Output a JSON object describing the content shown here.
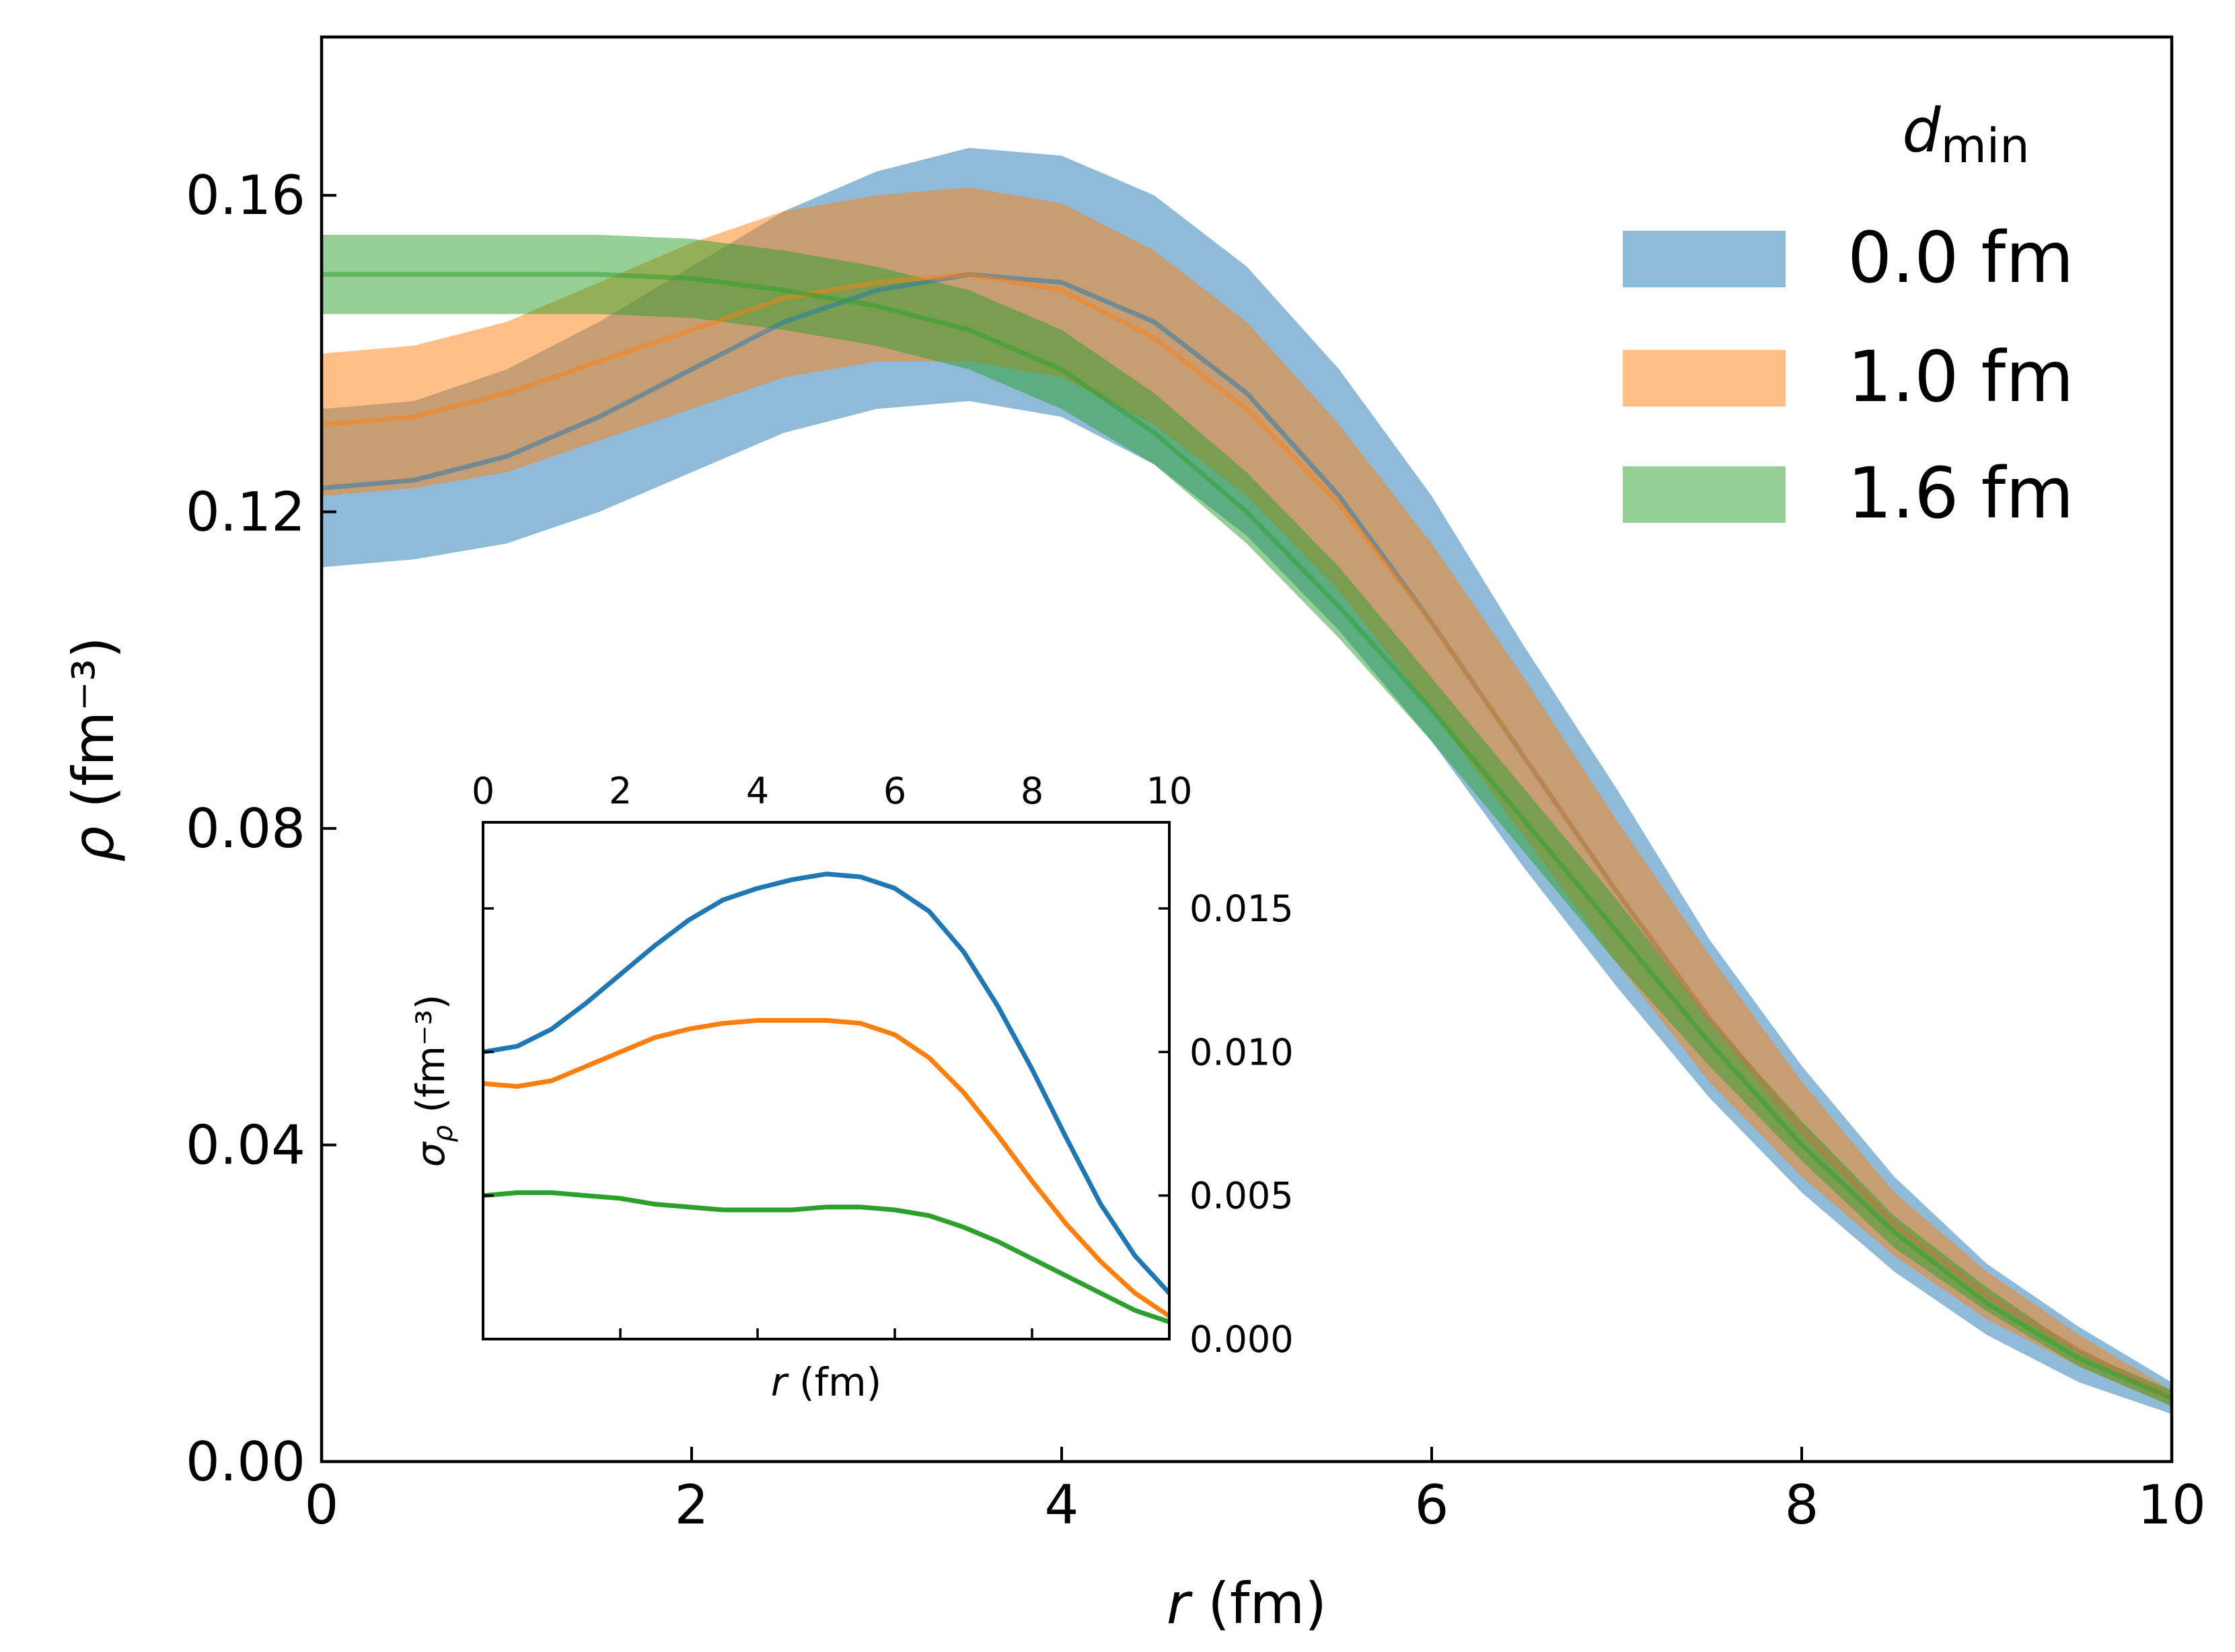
{
  "chart_data": [
    {
      "type": "area",
      "role": "main",
      "xlabel": "r (fm)",
      "ylabel": "ρ (fm⁻³)",
      "xlim": [
        0,
        10
      ],
      "ylim": [
        0,
        0.18
      ],
      "xticks": [
        0,
        2,
        4,
        6,
        8,
        10
      ],
      "xtick_labels": [
        "0",
        "2",
        "4",
        "6",
        "8",
        "10"
      ],
      "yticks": [
        0,
        0.04,
        0.08,
        0.12,
        0.16
      ],
      "ytick_labels": [
        "0.00",
        "0.04",
        "0.08",
        "0.12",
        "0.16"
      ],
      "legend": {
        "title": "d",
        "title_sub": "min",
        "placement": "top-right"
      },
      "x": [
        0,
        0.5,
        1,
        1.5,
        2,
        2.5,
        3,
        3.5,
        4,
        4.5,
        5,
        5.5,
        6,
        6.5,
        7,
        7.5,
        8,
        8.5,
        9,
        9.5,
        10
      ],
      "series": [
        {
          "name": "0.0 fm",
          "color": "#1f77b4",
          "mean": [
            0.123,
            0.124,
            0.127,
            0.132,
            0.138,
            0.144,
            0.148,
            0.15,
            0.149,
            0.144,
            0.135,
            0.122,
            0.106,
            0.089,
            0.072,
            0.056,
            0.042,
            0.03,
            0.021,
            0.014,
            0.008
          ],
          "lower": [
            0.113,
            0.114,
            0.116,
            0.12,
            0.125,
            0.13,
            0.133,
            0.134,
            0.132,
            0.126,
            0.117,
            0.105,
            0.091,
            0.075,
            0.06,
            0.046,
            0.034,
            0.024,
            0.016,
            0.01,
            0.006
          ],
          "upper": [
            0.133,
            0.134,
            0.138,
            0.144,
            0.151,
            0.158,
            0.163,
            0.166,
            0.165,
            0.16,
            0.151,
            0.138,
            0.122,
            0.103,
            0.085,
            0.066,
            0.05,
            0.036,
            0.025,
            0.017,
            0.01
          ]
        },
        {
          "name": "1.0 fm",
          "color": "#ff7f0e",
          "mean": [
            0.131,
            0.132,
            0.135,
            0.139,
            0.143,
            0.147,
            0.149,
            0.15,
            0.148,
            0.142,
            0.133,
            0.121,
            0.106,
            0.089,
            0.072,
            0.056,
            0.042,
            0.03,
            0.021,
            0.014,
            0.008
          ],
          "lower": [
            0.122,
            0.123,
            0.125,
            0.129,
            0.133,
            0.137,
            0.139,
            0.139,
            0.137,
            0.131,
            0.122,
            0.11,
            0.095,
            0.079,
            0.063,
            0.048,
            0.036,
            0.026,
            0.018,
            0.012,
            0.007
          ],
          "upper": [
            0.14,
            0.141,
            0.144,
            0.149,
            0.154,
            0.158,
            0.16,
            0.161,
            0.159,
            0.153,
            0.144,
            0.131,
            0.116,
            0.099,
            0.081,
            0.064,
            0.048,
            0.034,
            0.024,
            0.016,
            0.009
          ]
        },
        {
          "name": "1.6 fm",
          "color": "#2ca02c",
          "mean": [
            0.15,
            0.15,
            0.15,
            0.15,
            0.1495,
            0.148,
            0.146,
            0.143,
            0.138,
            0.13,
            0.12,
            0.108,
            0.095,
            0.081,
            0.067,
            0.053,
            0.04,
            0.029,
            0.02,
            0.013,
            0.008
          ],
          "lower": [
            0.145,
            0.145,
            0.145,
            0.145,
            0.1445,
            0.143,
            0.141,
            0.138,
            0.133,
            0.126,
            0.116,
            0.104,
            0.091,
            0.077,
            0.063,
            0.05,
            0.038,
            0.027,
            0.019,
            0.012,
            0.007
          ],
          "upper": [
            0.155,
            0.155,
            0.155,
            0.155,
            0.1545,
            0.153,
            0.151,
            0.148,
            0.143,
            0.135,
            0.125,
            0.113,
            0.099,
            0.085,
            0.071,
            0.056,
            0.043,
            0.031,
            0.022,
            0.014,
            0.009
          ]
        }
      ]
    },
    {
      "type": "line",
      "role": "inset",
      "xlabel": "r (fm)",
      "ylabel": "σρ (fm⁻³)",
      "xlim": [
        0,
        10
      ],
      "ylim": [
        0,
        0.018
      ],
      "xticks": [
        0,
        2,
        4,
        6,
        8,
        10
      ],
      "xtick_labels": [
        "0",
        "2",
        "4",
        "6",
        "8",
        "10"
      ],
      "xticks_top_labeled": true,
      "yticks": [
        0,
        0.005,
        0.01,
        0.015
      ],
      "ytick_labels": [
        "0.000",
        "0.005",
        "0.010",
        "0.015"
      ],
      "yticks_right_labeled": true,
      "x": [
        0,
        0.5,
        1,
        1.5,
        2,
        2.5,
        3,
        3.5,
        4,
        4.5,
        5,
        5.5,
        6,
        6.5,
        7,
        7.5,
        8,
        8.5,
        9,
        9.5,
        10
      ],
      "series": [
        {
          "name": "0.0 fm",
          "color": "#1f77b4",
          "values": [
            0.01,
            0.0102,
            0.0108,
            0.0117,
            0.0127,
            0.0137,
            0.0146,
            0.0153,
            0.0157,
            0.016,
            0.0162,
            0.0161,
            0.0157,
            0.0149,
            0.0135,
            0.0116,
            0.0094,
            0.007,
            0.0047,
            0.0029,
            0.0016
          ]
        },
        {
          "name": "1.0 fm",
          "color": "#ff7f0e",
          "values": [
            0.0089,
            0.0088,
            0.009,
            0.0095,
            0.01,
            0.0105,
            0.0108,
            0.011,
            0.0111,
            0.0111,
            0.0111,
            0.011,
            0.0106,
            0.0098,
            0.0086,
            0.0071,
            0.0055,
            0.004,
            0.0027,
            0.0016,
            0.0008
          ]
        },
        {
          "name": "1.6 fm",
          "color": "#2ca02c",
          "values": [
            0.005,
            0.0051,
            0.0051,
            0.005,
            0.0049,
            0.0047,
            0.0046,
            0.0045,
            0.0045,
            0.0045,
            0.0046,
            0.0046,
            0.0045,
            0.0043,
            0.0039,
            0.0034,
            0.0028,
            0.0022,
            0.0016,
            0.001,
            0.0006
          ]
        }
      ]
    }
  ]
}
